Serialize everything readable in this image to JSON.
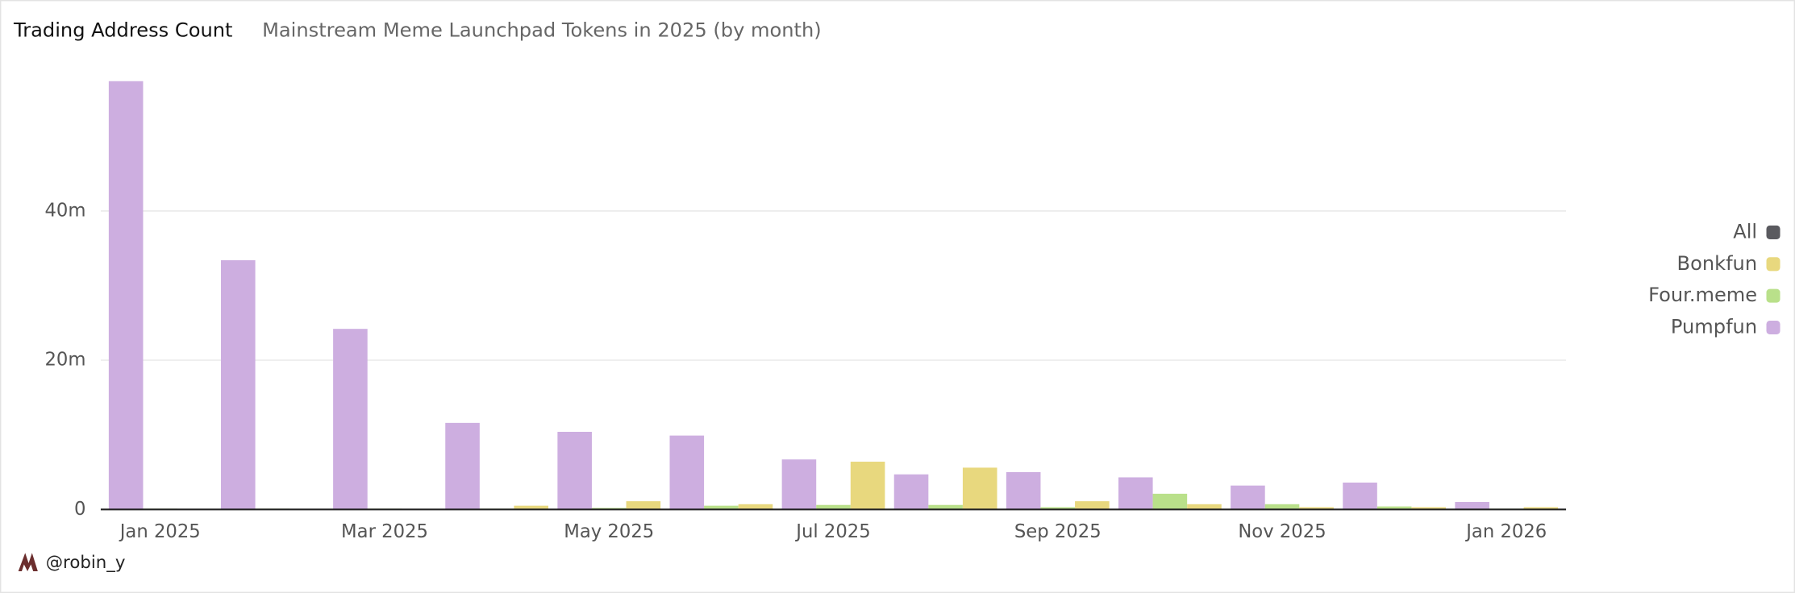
{
  "chart_data": {
    "type": "bar",
    "title": "Trading Address Count",
    "subtitle": "Mainstream Meme Launchpad Tokens in 2025 (by month)",
    "categories": [
      "Jan 2025",
      null,
      "Mar 2025",
      null,
      "May 2025",
      null,
      "Jul 2025",
      null,
      "Sep 2025",
      null,
      "Nov 2025",
      null,
      "Jan 2026"
    ],
    "series": [
      {
        "name": "All",
        "color": "#5a5a5f",
        "values": [
          null,
          null,
          null,
          null,
          null,
          null,
          null,
          null,
          null,
          null,
          null,
          null,
          null
        ]
      },
      {
        "name": "Bonkfun",
        "color": "#e8d87e",
        "values": [
          null,
          null,
          null,
          0.5,
          1.1,
          0.7,
          6.4,
          5.6,
          1.1,
          0.7,
          0.3,
          0.3,
          0.3
        ]
      },
      {
        "name": "Four.meme",
        "color": "#b9e08a",
        "values": [
          0.1,
          0.1,
          0.1,
          0.1,
          0.2,
          0.5,
          0.6,
          0.6,
          0.3,
          2.1,
          0.7,
          0.4,
          0.1
        ]
      },
      {
        "name": "Pumpfun",
        "color": "#cdaee0",
        "values": [
          57.4,
          33.4,
          24.2,
          11.6,
          10.4,
          9.9,
          6.7,
          4.7,
          5.0,
          4.3,
          3.2,
          3.6,
          1.0
        ]
      }
    ],
    "ylim": [
      0,
      58
    ],
    "yticks": [
      0,
      {
        "value": 20,
        "label": "20m"
      },
      {
        "value": 40,
        "label": "40m"
      }
    ],
    "grid": true,
    "legend": "right",
    "watermark": "@robin_y"
  }
}
